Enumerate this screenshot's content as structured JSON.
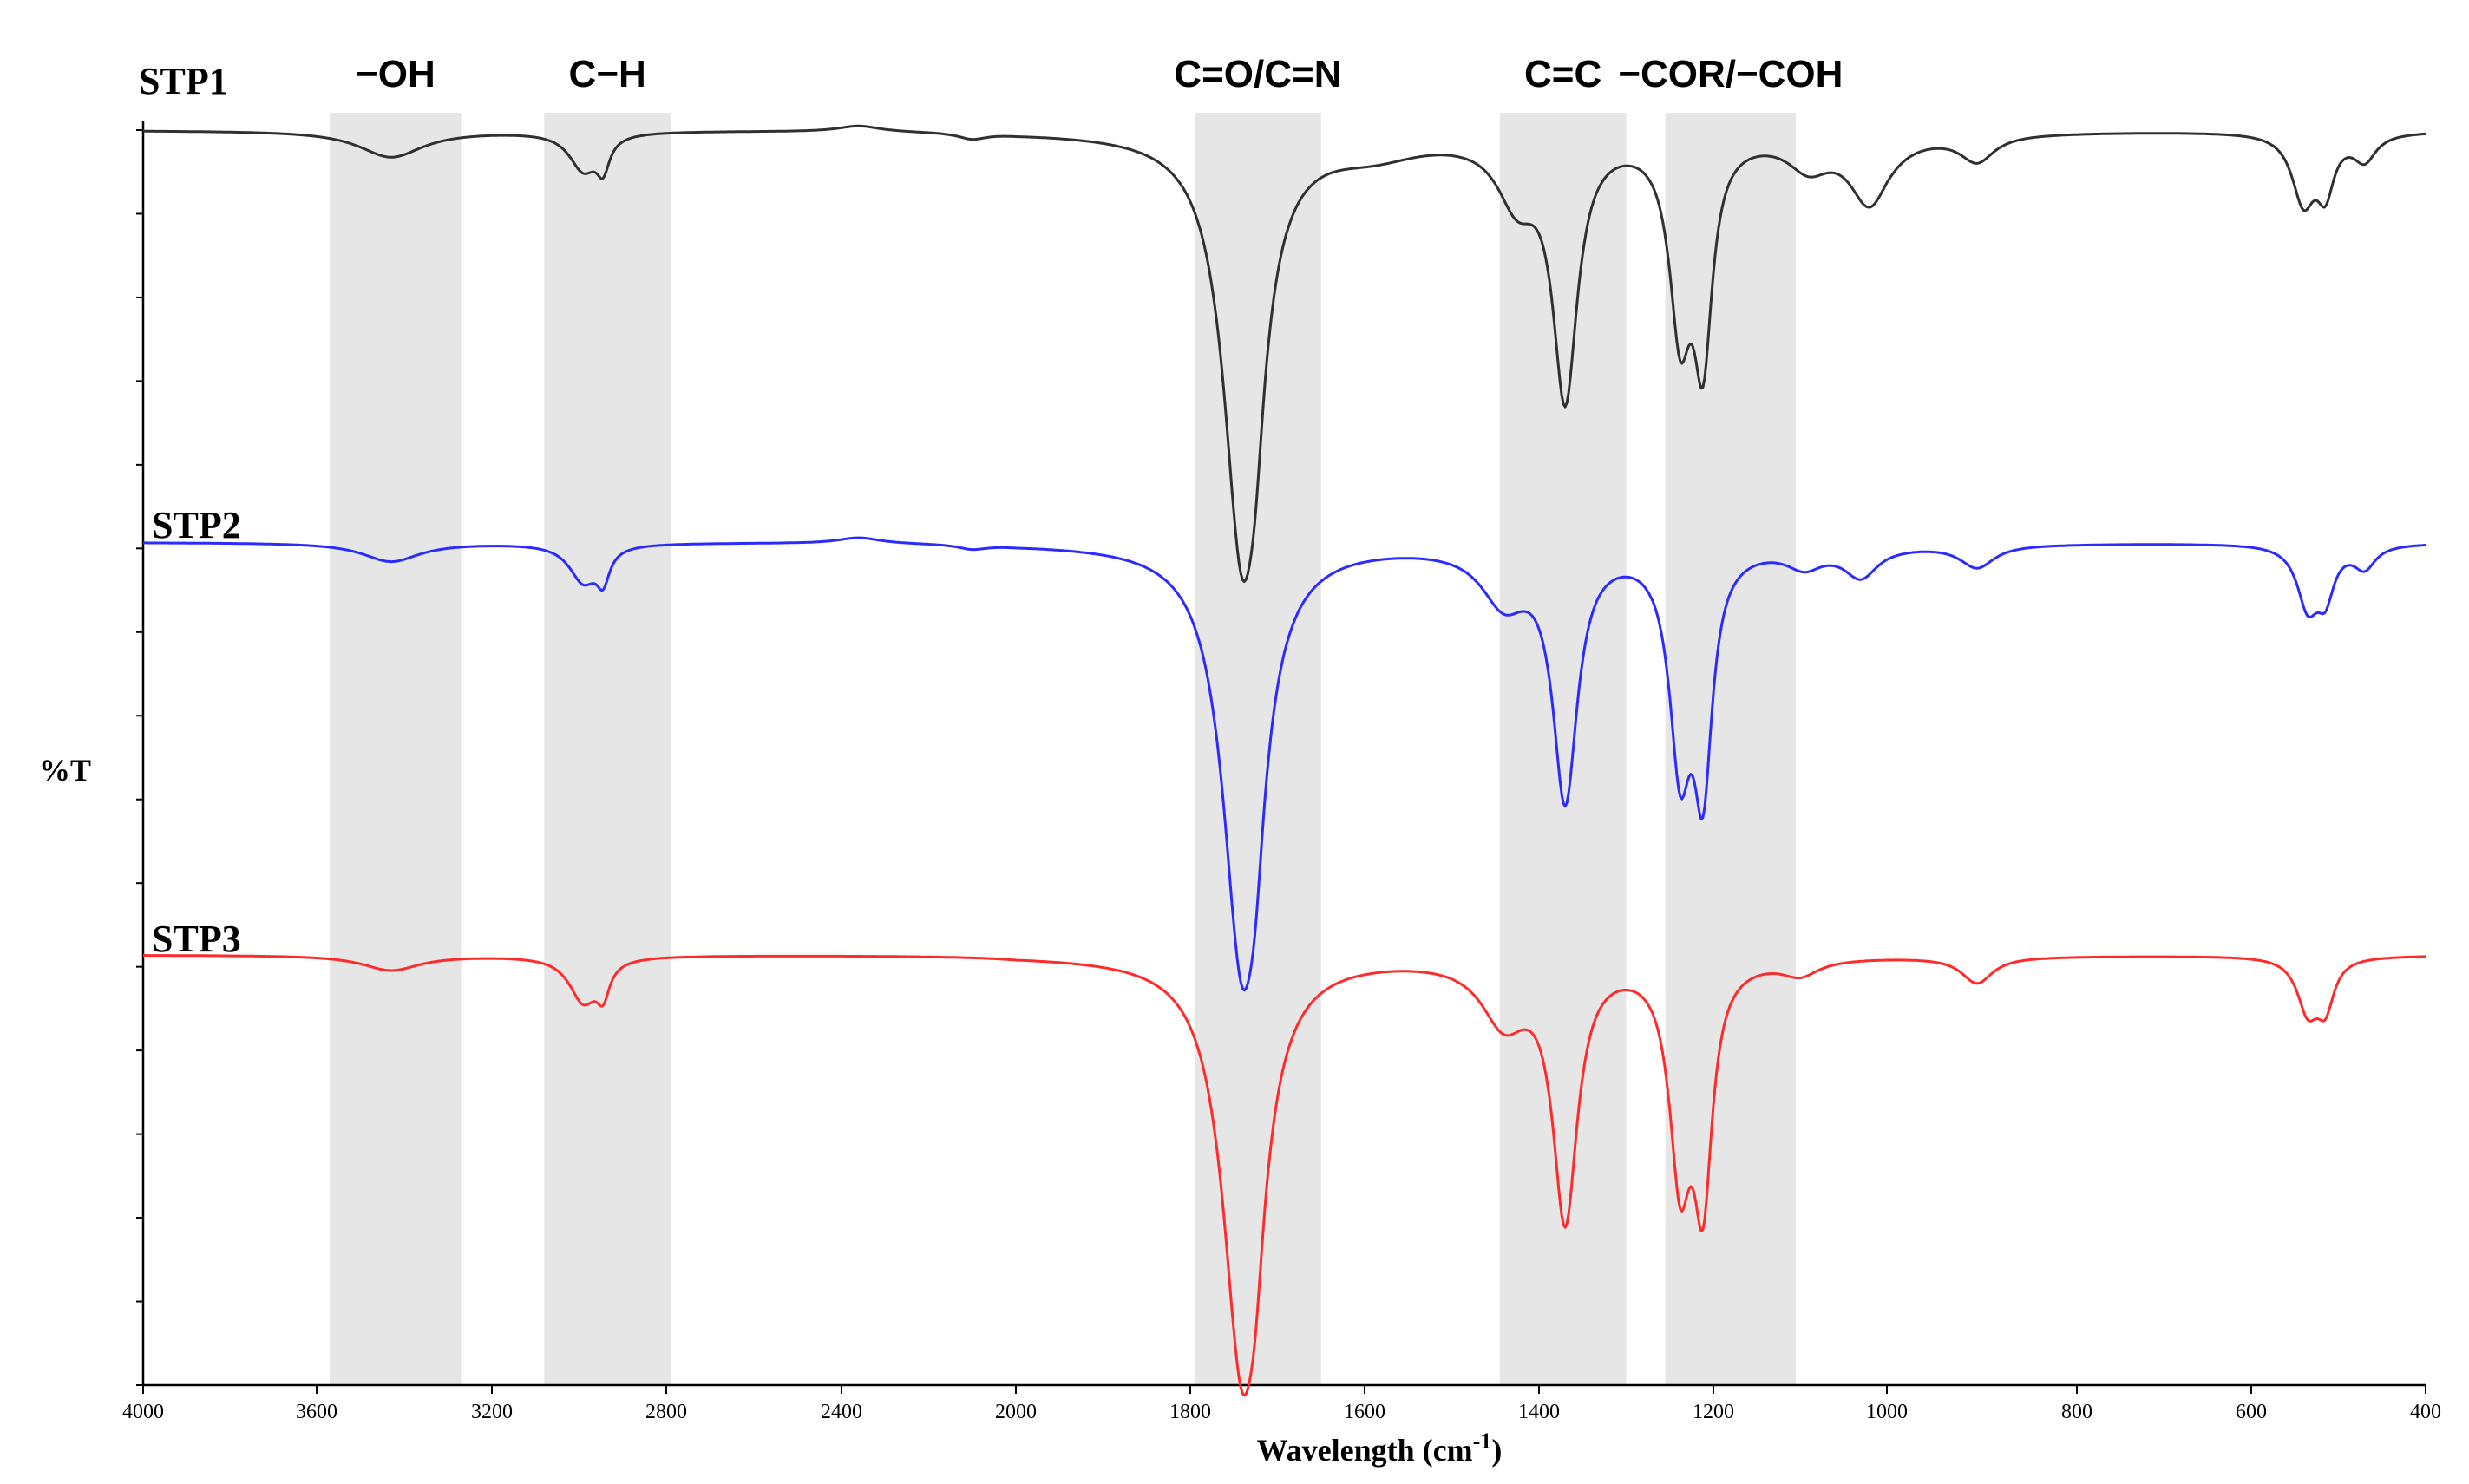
{
  "chart_data": {
    "type": "line",
    "title": "",
    "xlabel": "Wavelength (cm",
    "xlabel_sup": "-1",
    "xlabel_close": ")",
    "ylabel": "%T",
    "xlim": [
      4000,
      400
    ],
    "x_ticks": [
      "4000",
      "3600",
      "3200",
      "2800",
      "2400",
      "2000",
      "1800",
      "1600",
      "1400",
      "1200",
      "1000",
      "800",
      "600",
      "400"
    ],
    "y_ticks": "unlabeled",
    "bands": [
      {
        "label": "−OH",
        "from": 3570,
        "to": 3270
      },
      {
        "label": "C−H",
        "from": 3080,
        "to": 2790
      },
      {
        "label": "C=O/C=N",
        "from": 1795,
        "to": 1650
      },
      {
        "label": "C=C",
        "from": 1445,
        "to": 1300
      },
      {
        "label": "−COR/−COH",
        "from": 1255,
        "to": 1105
      }
    ],
    "series": [
      {
        "name": "STP1",
        "color": "#303030",
        "baseline": 96.5,
        "peaks": [
          {
            "center": 3430,
            "width": 90,
            "depth": 3.5
          },
          {
            "center": 2990,
            "width": 40,
            "depth": 5
          },
          {
            "center": 2945,
            "width": 18,
            "depth": 4
          },
          {
            "center": 2360,
            "width": 60,
            "depth": -0.8
          },
          {
            "center": 2100,
            "width": 40,
            "depth": 0.8
          },
          {
            "center": 1740,
            "width": 26,
            "depth": 56
          },
          {
            "center": 1725,
            "width": 12,
            "depth": 8
          },
          {
            "center": 1590,
            "width": 70,
            "depth": 2.5
          },
          {
            "center": 1425,
            "width": 28,
            "depth": 8
          },
          {
            "center": 1370,
            "width": 17,
            "depth": 34
          },
          {
            "center": 1238,
            "width": 15,
            "depth": 24
          },
          {
            "center": 1212,
            "width": 13,
            "depth": 27
          },
          {
            "center": 1090,
            "width": 30,
            "depth": 4
          },
          {
            "center": 1020,
            "width": 28,
            "depth": 9
          },
          {
            "center": 905,
            "width": 22,
            "depth": 3.5
          },
          {
            "center": 540,
            "width": 16,
            "depth": 9
          },
          {
            "center": 515,
            "width": 12,
            "depth": 7
          },
          {
            "center": 470,
            "width": 16,
            "depth": 3.5
          }
        ]
      },
      {
        "name": "STP2",
        "color": "#2b2bff",
        "baseline": 96.5,
        "peaks": [
          {
            "center": 3430,
            "width": 80,
            "depth": 2.5
          },
          {
            "center": 2990,
            "width": 40,
            "depth": 5
          },
          {
            "center": 2945,
            "width": 18,
            "depth": 4
          },
          {
            "center": 2360,
            "width": 60,
            "depth": -0.8
          },
          {
            "center": 2100,
            "width": 40,
            "depth": 0.6
          },
          {
            "center": 1740,
            "width": 27,
            "depth": 56
          },
          {
            "center": 1725,
            "width": 12,
            "depth": 8
          },
          {
            "center": 1440,
            "width": 32,
            "depth": 7
          },
          {
            "center": 1370,
            "width": 17,
            "depth": 33
          },
          {
            "center": 1238,
            "width": 15,
            "depth": 27
          },
          {
            "center": 1212,
            "width": 13,
            "depth": 29
          },
          {
            "center": 1095,
            "width": 26,
            "depth": 2.5
          },
          {
            "center": 1030,
            "width": 24,
            "depth": 4
          },
          {
            "center": 905,
            "width": 22,
            "depth": 3
          },
          {
            "center": 535,
            "width": 15,
            "depth": 8
          },
          {
            "center": 515,
            "width": 12,
            "depth": 6
          },
          {
            "center": 470,
            "width": 15,
            "depth": 3
          }
        ]
      },
      {
        "name": "STP3",
        "color": "#ff2b2b",
        "baseline": 97,
        "peaks": [
          {
            "center": 3430,
            "width": 80,
            "depth": 2
          },
          {
            "center": 2990,
            "width": 40,
            "depth": 6
          },
          {
            "center": 2945,
            "width": 18,
            "depth": 4
          },
          {
            "center": 1740,
            "width": 27,
            "depth": 55
          },
          {
            "center": 1725,
            "width": 12,
            "depth": 8
          },
          {
            "center": 1440,
            "width": 32,
            "depth": 8
          },
          {
            "center": 1370,
            "width": 17,
            "depth": 34
          },
          {
            "center": 1238,
            "width": 15,
            "depth": 27
          },
          {
            "center": 1212,
            "width": 13,
            "depth": 29
          },
          {
            "center": 1100,
            "width": 26,
            "depth": 2
          },
          {
            "center": 905,
            "width": 20,
            "depth": 3.5
          },
          {
            "center": 535,
            "width": 15,
            "depth": 7
          },
          {
            "center": 515,
            "width": 12,
            "depth": 6
          }
        ]
      }
    ]
  }
}
